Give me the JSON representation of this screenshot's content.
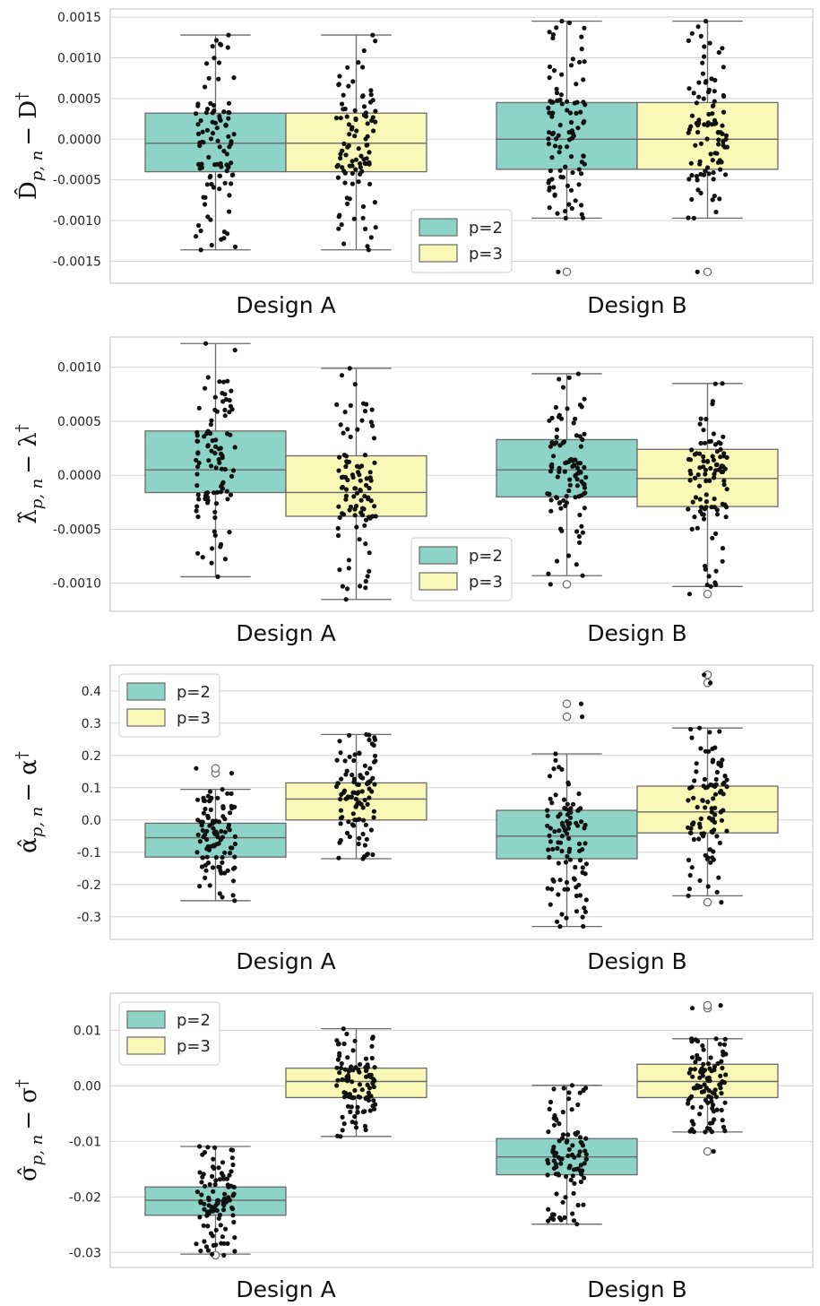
{
  "colors": {
    "p2": "#8dd3c7",
    "p3": "#f9f8b7",
    "grid": "#d4d4d4"
  },
  "chart_data": [
    {
      "type": "box",
      "ylabel_main": "D̂",
      "ylabel_sub": "p, n",
      "ylabel_tail": "− D",
      "ylabel_dagger": "†",
      "ylim": [
        -0.00177,
        0.0016
      ],
      "yticks": [
        0.0015,
        0.001,
        0.0005,
        0.0,
        -0.0005,
        -0.001,
        -0.0015
      ],
      "ytick_labels": [
        "0.0015",
        "0.0010",
        "0.0005",
        "0.0000",
        "-0.0005",
        "-0.0010",
        "-0.0015"
      ],
      "categories": [
        "Design A",
        "Design B"
      ],
      "legend": {
        "position": "bottom-center",
        "entries": [
          "p=2",
          "p=3"
        ]
      },
      "series": [
        {
          "name": "p=2",
          "boxes": [
            {
              "q1": -0.0004,
              "median": -5e-05,
              "q3": 0.00032,
              "whisker_low": -0.00136,
              "whisker_high": 0.00128,
              "fliers": [],
              "n": 100,
              "seed": 11
            },
            {
              "q1": -0.00037,
              "median": 0.0,
              "q3": 0.00045,
              "whisker_low": -0.00097,
              "whisker_high": 0.00145,
              "fliers": [
                -0.00163
              ],
              "n": 100,
              "seed": 12
            }
          ]
        },
        {
          "name": "p=3",
          "boxes": [
            {
              "q1": -0.0004,
              "median": -5e-05,
              "q3": 0.00032,
              "whisker_low": -0.00136,
              "whisker_high": 0.00128,
              "fliers": [],
              "n": 100,
              "seed": 13
            },
            {
              "q1": -0.00037,
              "median": 0.0,
              "q3": 0.00045,
              "whisker_low": -0.00097,
              "whisker_high": 0.00145,
              "fliers": [
                -0.00163
              ],
              "n": 100,
              "seed": 14
            }
          ]
        }
      ]
    },
    {
      "type": "box",
      "ylabel_main": "λ̂",
      "ylabel_sub": "p, n",
      "ylabel_tail": "− λ",
      "ylabel_dagger": "†",
      "ylim": [
        -0.00126,
        0.00128
      ],
      "yticks": [
        0.001,
        0.0005,
        0.0,
        -0.0005,
        -0.001
      ],
      "ytick_labels": [
        "0.0010",
        "0.0005",
        "0.0000",
        "-0.0005",
        "-0.0010"
      ],
      "categories": [
        "Design A",
        "Design B"
      ],
      "legend": {
        "position": "bottom-center",
        "entries": [
          "p=2",
          "p=3"
        ]
      },
      "series": [
        {
          "name": "p=2",
          "boxes": [
            {
              "q1": -0.00016,
              "median": 5e-05,
              "q3": 0.00041,
              "whisker_low": -0.00094,
              "whisker_high": 0.00122,
              "fliers": [],
              "n": 100,
              "seed": 21
            },
            {
              "q1": -0.0002,
              "median": 5e-05,
              "q3": 0.00033,
              "whisker_low": -0.00093,
              "whisker_high": 0.00094,
              "fliers": [
                -0.00101
              ],
              "n": 100,
              "seed": 22
            }
          ]
        },
        {
          "name": "p=3",
          "boxes": [
            {
              "q1": -0.00038,
              "median": -0.00016,
              "q3": 0.00018,
              "whisker_low": -0.00115,
              "whisker_high": 0.00099,
              "fliers": [],
              "n": 100,
              "seed": 23
            },
            {
              "q1": -0.00029,
              "median": -3e-05,
              "q3": 0.00024,
              "whisker_low": -0.00103,
              "whisker_high": 0.00085,
              "fliers": [
                -0.0011
              ],
              "n": 100,
              "seed": 24
            }
          ]
        }
      ]
    },
    {
      "type": "box",
      "ylabel_main": "α̂",
      "ylabel_sub": "p, n",
      "ylabel_tail": "− α",
      "ylabel_dagger": "†",
      "ylim": [
        -0.37,
        0.48
      ],
      "yticks": [
        0.4,
        0.3,
        0.2,
        0.1,
        0.0,
        -0.1,
        -0.2,
        -0.3
      ],
      "ytick_labels": [
        "0.4",
        "0.3",
        "0.2",
        "0.1",
        "0.0",
        "-0.1",
        "-0.2",
        "-0.3"
      ],
      "categories": [
        "Design A",
        "Design B"
      ],
      "legend": {
        "position": "top-left",
        "entries": [
          "p=2",
          "p=3"
        ]
      },
      "series": [
        {
          "name": "p=2",
          "boxes": [
            {
              "q1": -0.115,
              "median": -0.055,
              "q3": -0.01,
              "whisker_low": -0.25,
              "whisker_high": 0.095,
              "fliers": [
                0.145,
                0.16
              ],
              "n": 100,
              "seed": 31
            },
            {
              "q1": -0.12,
              "median": -0.05,
              "q3": 0.03,
              "whisker_low": -0.33,
              "whisker_high": 0.205,
              "fliers": [
                0.32,
                0.36
              ],
              "n": 100,
              "seed": 32
            }
          ]
        },
        {
          "name": "p=3",
          "boxes": [
            {
              "q1": 0.0,
              "median": 0.065,
              "q3": 0.115,
              "whisker_low": -0.12,
              "whisker_high": 0.265,
              "fliers": [],
              "n": 100,
              "seed": 33
            },
            {
              "q1": -0.04,
              "median": 0.025,
              "q3": 0.105,
              "whisker_low": -0.235,
              "whisker_high": 0.285,
              "fliers": [
                -0.255,
                0.425,
                0.45
              ],
              "n": 100,
              "seed": 34
            }
          ]
        }
      ]
    },
    {
      "type": "box",
      "ylabel_main": "σ̂",
      "ylabel_sub": "p, n",
      "ylabel_tail": "− σ",
      "ylabel_dagger": "†",
      "ylim": [
        -0.0327,
        0.0167
      ],
      "yticks": [
        0.01,
        0.0,
        -0.01,
        -0.02,
        -0.03
      ],
      "ytick_labels": [
        "0.01",
        "0.00",
        "-0.01",
        "-0.02",
        "-0.03"
      ],
      "categories": [
        "Design A",
        "Design B"
      ],
      "legend": {
        "position": "top-left",
        "entries": [
          "p=2",
          "p=3"
        ]
      },
      "series": [
        {
          "name": "p=2",
          "boxes": [
            {
              "q1": -0.0233,
              "median": -0.0206,
              "q3": -0.0182,
              "whisker_low": -0.0303,
              "whisker_high": -0.0109,
              "fliers": [
                -0.0305
              ],
              "n": 100,
              "seed": 41
            },
            {
              "q1": -0.016,
              "median": -0.0128,
              "q3": -0.0095,
              "whisker_low": -0.0249,
              "whisker_high": 0.0001,
              "fliers": [],
              "n": 100,
              "seed": 42
            }
          ]
        },
        {
          "name": "p=3",
          "boxes": [
            {
              "q1": -0.0021,
              "median": 0.0008,
              "q3": 0.0032,
              "whisker_low": -0.0091,
              "whisker_high": 0.0103,
              "fliers": [],
              "n": 100,
              "seed": 43
            },
            {
              "q1": -0.0021,
              "median": 0.0008,
              "q3": 0.0039,
              "whisker_low": -0.0083,
              "whisker_high": 0.0085,
              "fliers": [
                -0.0118,
                0.014,
                0.0145
              ],
              "n": 100,
              "seed": 44
            }
          ]
        }
      ]
    }
  ]
}
